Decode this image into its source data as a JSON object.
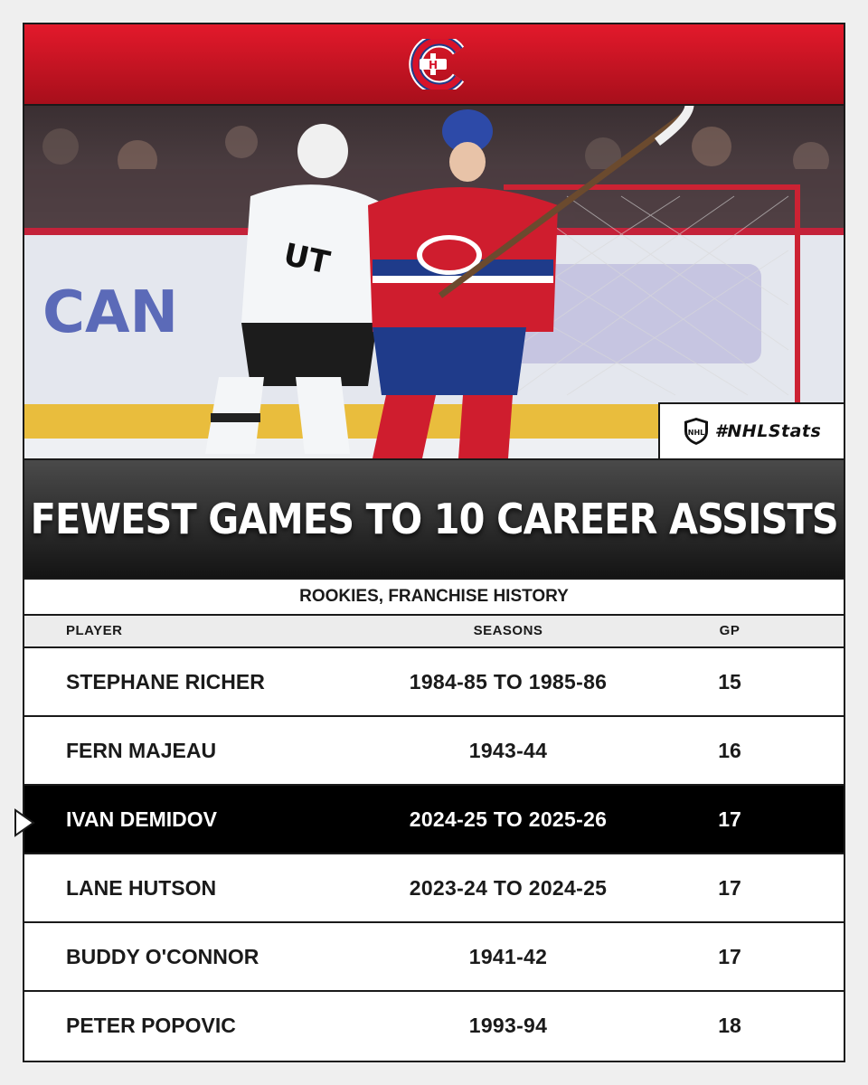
{
  "header": {
    "logo_icon": "canadiens-logo-icon",
    "colors": {
      "red": "#e3192b",
      "blue": "#1f3b8a",
      "white": "#ffffff"
    }
  },
  "photo": {
    "badge": {
      "icon": "nhl-shield-icon",
      "hashtag": "#NHLStats"
    }
  },
  "title": "FEWEST GAMES TO 10 CAREER ASSISTS",
  "subtitle": "ROOKIES, FRANCHISE HISTORY",
  "table": {
    "columns": {
      "player": "PLAYER",
      "seasons": "SEASONS",
      "gp": "GP"
    },
    "rows": [
      {
        "player": "STEPHANE RICHER",
        "seasons": "1984-85  TO 1985-86",
        "gp": "15"
      },
      {
        "player": "FERN MAJEAU",
        "seasons": "1943-44",
        "gp": "16"
      },
      {
        "player": "IVAN DEMIDOV",
        "seasons": "2024-25 TO 2025-26",
        "gp": "17"
      },
      {
        "player": "LANE HUTSON",
        "seasons": "2023-24  TO 2024-25",
        "gp": "17"
      },
      {
        "player": "BUDDY O'CONNOR",
        "seasons": "1941-42",
        "gp": "17"
      },
      {
        "player": "PETER POPOVIC",
        "seasons": "1993-94",
        "gp": "18"
      }
    ],
    "highlight_color": "#000000"
  }
}
